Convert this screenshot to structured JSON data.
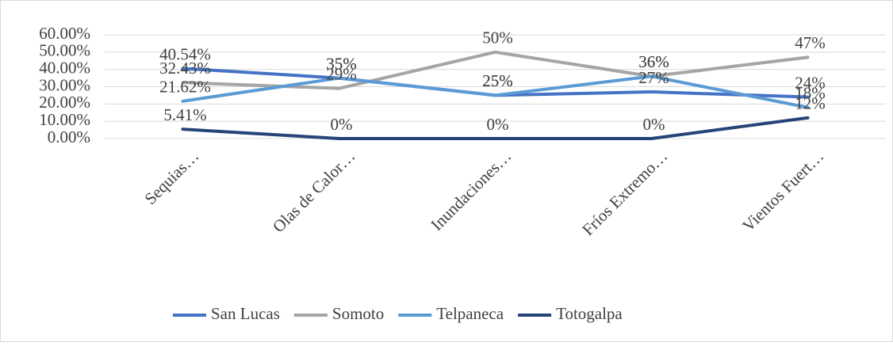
{
  "chart_data": {
    "type": "line",
    "categories": [
      "Sequias…",
      "Olas de Calor…",
      "Inundaciones…",
      "Fríos Extremo…",
      "Vientos Fuert…"
    ],
    "series": [
      {
        "name": "San Lucas",
        "color": "#4472c4",
        "values": [
          40.54,
          35,
          25,
          27,
          24
        ],
        "value_labels": [
          "40.54%",
          "35%",
          "25%",
          "27%",
          "24%"
        ]
      },
      {
        "name": "Somoto",
        "color": "#a5a5a5",
        "values": [
          32.43,
          29,
          50,
          36,
          47
        ],
        "value_labels": [
          "32.43%",
          "29%",
          "50%",
          "36%",
          "47%"
        ]
      },
      {
        "name": "Telpaneca",
        "color": "#5b9bd5",
        "values": [
          21.62,
          35,
          25,
          36,
          18
        ],
        "value_labels": [
          "21.62%",
          "35%",
          "25%",
          "36%",
          "18%"
        ]
      },
      {
        "name": "Totogalpa",
        "color": "#264478",
        "values": [
          5.41,
          0,
          0,
          0,
          12
        ],
        "value_labels": [
          "5.41%",
          "0%",
          "0%",
          "0%",
          "12%"
        ]
      }
    ],
    "ylim": [
      0,
      60
    ],
    "yticks": [
      {
        "value": 0,
        "label": "0.00%"
      },
      {
        "value": 10,
        "label": "10.00%"
      },
      {
        "value": 20,
        "label": "20.00%"
      },
      {
        "value": 30,
        "label": "30.00%"
      },
      {
        "value": 40,
        "label": "40.00%"
      },
      {
        "value": 50,
        "label": "50.00%"
      },
      {
        "value": 60,
        "label": "60.00%"
      }
    ],
    "grid": true,
    "legend": "bottom"
  }
}
